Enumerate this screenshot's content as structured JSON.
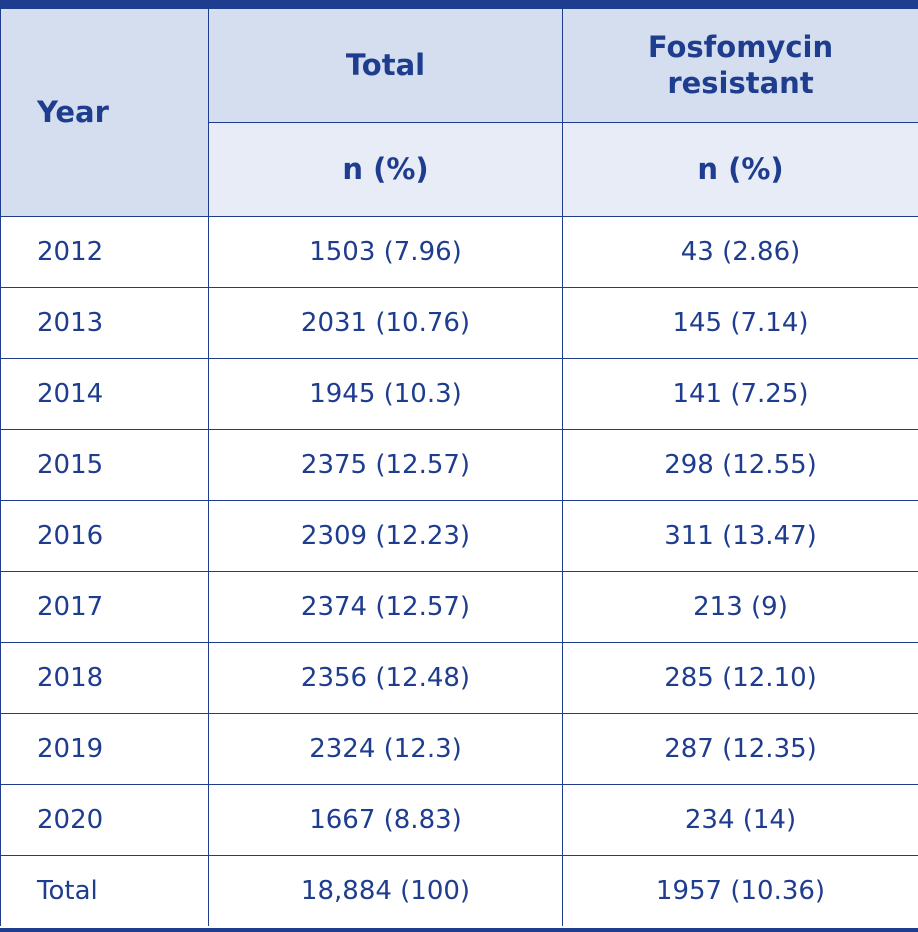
{
  "table": {
    "headers": {
      "year": "Year",
      "total": "Total",
      "fosfomycin_line1": "Fosfomycin",
      "fosfomycin_line2": "resistant",
      "total_sub": "n (%)",
      "fosfomycin_sub": "n (%)"
    },
    "rows": [
      {
        "year": "2012",
        "total": "1503 (7.96)",
        "resistant": "43 (2.86)"
      },
      {
        "year": "2013",
        "total": "2031 (10.76)",
        "resistant": "145 (7.14)"
      },
      {
        "year": "2014",
        "total": "1945 (10.3)",
        "resistant": "141 (7.25)"
      },
      {
        "year": "2015",
        "total": "2375 (12.57)",
        "resistant": "298 (12.55)"
      },
      {
        "year": "2016",
        "total": "2309 (12.23)",
        "resistant": "311 (13.47)"
      },
      {
        "year": "2017",
        "total": "2374 (12.57)",
        "resistant": "213 (9)"
      },
      {
        "year": "2018",
        "total": "2356 (12.48)",
        "resistant": "285 (12.10)"
      },
      {
        "year": "2019",
        "total": "2324 (12.3)",
        "resistant": "287 (12.35)"
      },
      {
        "year": "2020",
        "total": "1667 (8.83)",
        "resistant": "234 (14)"
      },
      {
        "year": "Total",
        "total": "18,884 (100)",
        "resistant": "1957 (10.36)"
      }
    ]
  },
  "colors": {
    "rule": "#1f3d8f",
    "text": "#1f3d8f",
    "header_bg": "#d5deef",
    "subheader_bg": "#e7ecf6"
  }
}
